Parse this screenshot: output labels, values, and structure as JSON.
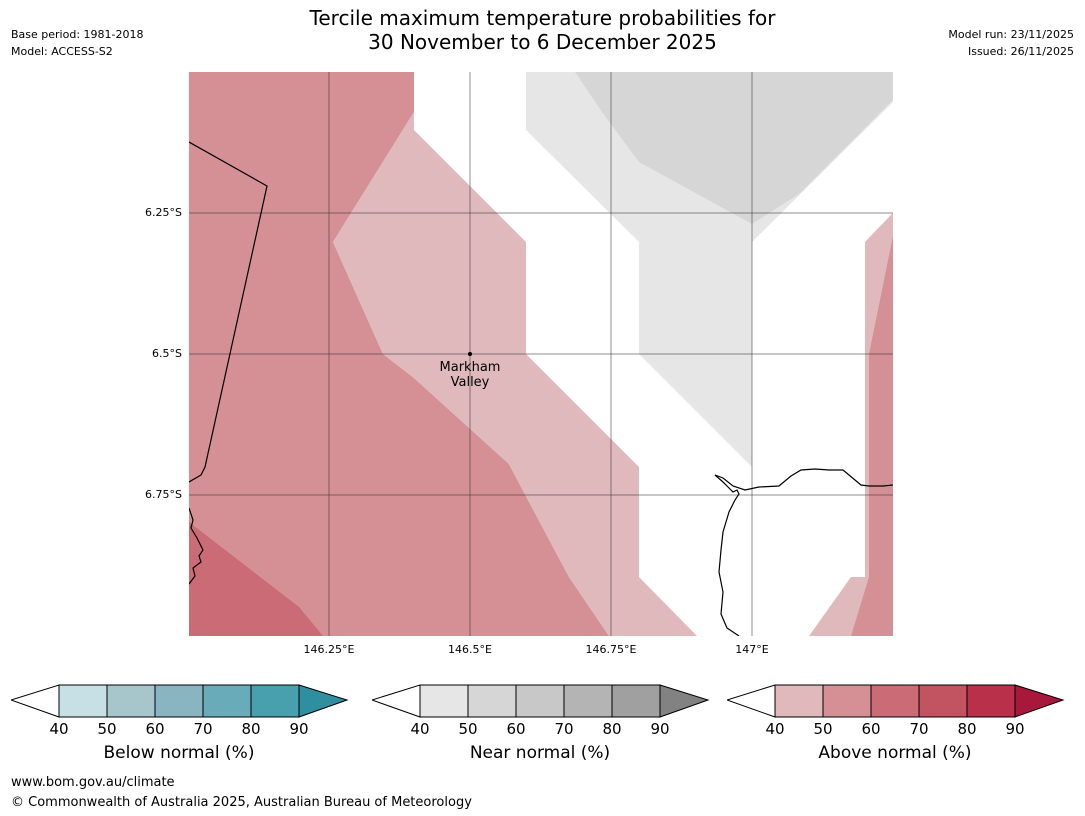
{
  "title": {
    "line1": "Tercile maximum temperature probabilities for",
    "line2": "30 November to 6 December 2025"
  },
  "meta_left": {
    "base_period": "Base period: 1981-2018",
    "model": "Model: ACCESS-S2"
  },
  "meta_right": {
    "model_run": "Model run: 23/11/2025",
    "issued": "Issued: 26/11/2025"
  },
  "map": {
    "lat_labels": [
      "6.25°S",
      "6.5°S",
      "6.75°S"
    ],
    "lon_labels": [
      "146.25°E",
      "146.5°E",
      "146.75°E",
      "147°E"
    ],
    "place": {
      "name_line1": "Markham",
      "name_line2": "Valley"
    },
    "colors": {
      "above_40": "#e0b9bd",
      "above_50": "#d59096",
      "above_60": "#cb6b75",
      "near_40": "#e6e6e6",
      "near_50": "#d6d6d6"
    }
  },
  "legends": [
    {
      "label": "Below normal (%)",
      "ticks": [
        "40",
        "50",
        "60",
        "70",
        "80",
        "90"
      ],
      "colors": [
        "#c7e0e6",
        "#a6c6cc",
        "#89b5c1",
        "#6aabb9",
        "#48a0ae",
        "#2f8ea0"
      ]
    },
    {
      "label": "Near normal (%)",
      "ticks": [
        "40",
        "50",
        "60",
        "70",
        "80",
        "90"
      ],
      "colors": [
        "#e6e6e6",
        "#d6d6d6",
        "#c8c8c8",
        "#b4b4b4",
        "#a0a0a0",
        "#828282"
      ]
    },
    {
      "label": "Above normal (%)",
      "ticks": [
        "40",
        "50",
        "60",
        "70",
        "80",
        "90"
      ],
      "colors": [
        "#e0b9bd",
        "#d59096",
        "#cb6b75",
        "#c25462",
        "#b8304a",
        "#a8183a"
      ]
    }
  ],
  "footer": {
    "url": "www.bom.gov.au/climate",
    "copyright": "© Commonwealth of Australia 2025, Australian Bureau of Meteorology"
  }
}
